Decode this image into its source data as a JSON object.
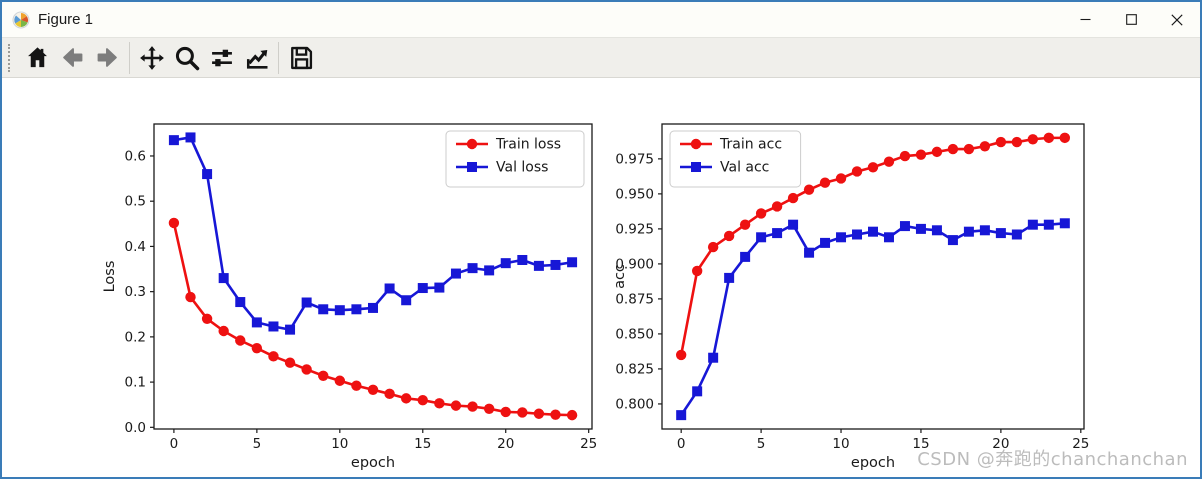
{
  "window": {
    "title": "Figure 1",
    "border_color": "#3a7cb8",
    "controls": [
      {
        "name": "minimize"
      },
      {
        "name": "maximize"
      },
      {
        "name": "close"
      }
    ]
  },
  "toolbar": {
    "items": [
      {
        "name": "home"
      },
      {
        "name": "back"
      },
      {
        "name": "forward"
      },
      {
        "name": "pan"
      },
      {
        "name": "zoom-to-rect"
      },
      {
        "name": "configure-subplots"
      },
      {
        "name": "edit-parameters"
      },
      {
        "name": "save"
      }
    ]
  },
  "watermark": "CSDN @奔跑的chanchanchan",
  "chart_data": [
    {
      "type": "line",
      "title": "",
      "xlabel": "epoch",
      "ylabel": "Loss",
      "xlim": [
        -1.2,
        25.2
      ],
      "ylim": [
        -0.0037,
        0.6707
      ],
      "grid": false,
      "legend_position": "ne",
      "xticks": [
        0,
        5,
        10,
        15,
        20,
        25
      ],
      "xtick_labels": [
        "0",
        "5",
        "10",
        "15",
        "20",
        "25"
      ],
      "yticks": [
        0.0,
        0.1,
        0.2,
        0.3,
        0.4,
        0.5,
        0.6
      ],
      "ytick_labels": [
        "0.0",
        "0.1",
        "0.2",
        "0.3",
        "0.4",
        "0.5",
        "0.6"
      ],
      "x": [
        0,
        1,
        2,
        3,
        4,
        5,
        6,
        7,
        8,
        9,
        10,
        11,
        12,
        13,
        14,
        15,
        16,
        17,
        18,
        19,
        20,
        21,
        22,
        23,
        24
      ],
      "series": [
        {
          "name": "Train loss",
          "color": "#ee1111",
          "marker": "circle",
          "values": [
            0.452,
            0.288,
            0.24,
            0.213,
            0.192,
            0.175,
            0.157,
            0.143,
            0.128,
            0.114,
            0.103,
            0.092,
            0.083,
            0.074,
            0.064,
            0.06,
            0.053,
            0.048,
            0.046,
            0.041,
            0.034,
            0.033,
            0.03,
            0.028,
            0.027
          ]
        },
        {
          "name": "Val loss",
          "color": "#1717d6",
          "marker": "square",
          "values": [
            0.635,
            0.641,
            0.56,
            0.33,
            0.277,
            0.232,
            0.223,
            0.216,
            0.276,
            0.261,
            0.259,
            0.261,
            0.264,
            0.307,
            0.281,
            0.308,
            0.309,
            0.34,
            0.352,
            0.347,
            0.363,
            0.37,
            0.357,
            0.359,
            0.365
          ]
        }
      ]
    },
    {
      "type": "line",
      "title": "",
      "xlabel": "epoch",
      "ylabel": "acc",
      "xlim": [
        -1.2,
        25.2
      ],
      "ylim": [
        0.7821,
        0.9999
      ],
      "grid": false,
      "legend_position": "nw",
      "xticks": [
        0,
        5,
        10,
        15,
        20,
        25
      ],
      "xtick_labels": [
        "0",
        "5",
        "10",
        "15",
        "20",
        "25"
      ],
      "yticks": [
        0.8,
        0.825,
        0.85,
        0.875,
        0.9,
        0.925,
        0.95,
        0.975
      ],
      "ytick_labels": [
        "0.800",
        "0.825",
        "0.850",
        "0.875",
        "0.900",
        "0.925",
        "0.950",
        "0.975"
      ],
      "x": [
        0,
        1,
        2,
        3,
        4,
        5,
        6,
        7,
        8,
        9,
        10,
        11,
        12,
        13,
        14,
        15,
        16,
        17,
        18,
        19,
        20,
        21,
        22,
        23,
        24
      ],
      "series": [
        {
          "name": "Train acc",
          "color": "#ee1111",
          "marker": "circle",
          "values": [
            0.835,
            0.895,
            0.912,
            0.92,
            0.928,
            0.936,
            0.941,
            0.947,
            0.953,
            0.958,
            0.961,
            0.966,
            0.969,
            0.973,
            0.977,
            0.978,
            0.98,
            0.982,
            0.982,
            0.984,
            0.987,
            0.987,
            0.989,
            0.99,
            0.99
          ]
        },
        {
          "name": "Val acc",
          "color": "#1717d6",
          "marker": "square",
          "values": [
            0.792,
            0.809,
            0.833,
            0.89,
            0.905,
            0.919,
            0.922,
            0.928,
            0.908,
            0.915,
            0.919,
            0.921,
            0.923,
            0.919,
            0.927,
            0.925,
            0.924,
            0.917,
            0.923,
            0.924,
            0.922,
            0.921,
            0.928,
            0.928,
            0.929
          ]
        }
      ]
    }
  ]
}
